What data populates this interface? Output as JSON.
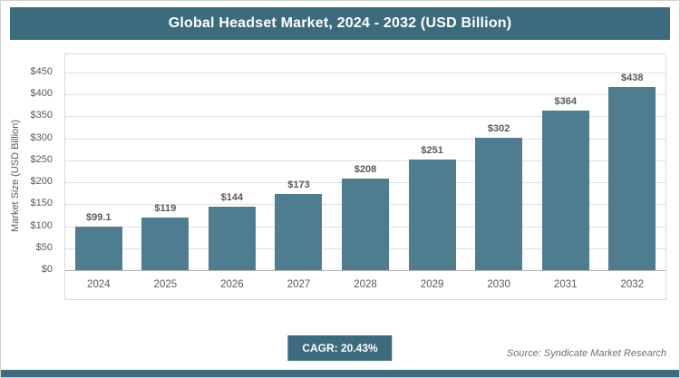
{
  "chart_data": {
    "type": "bar",
    "title": "Global Headset Market, 2024 - 2032 (USD Billion)",
    "categories": [
      "2024",
      "2025",
      "2026",
      "2027",
      "2028",
      "2029",
      "2030",
      "2031",
      "2032"
    ],
    "values": [
      99.1,
      119,
      144,
      173,
      208,
      251,
      302,
      364,
      438
    ],
    "value_labels": [
      "$99.1",
      "$119",
      "$144",
      "$173",
      "$208",
      "$251",
      "$302",
      "$364",
      "$438"
    ],
    "xlabel": "",
    "ylabel": "Market Size (USD Billion)",
    "ylim": [
      0,
      450
    ],
    "ytick_step": 50,
    "ytick_labels": [
      "$0",
      "$50",
      "$100",
      "$150",
      "$200",
      "$250",
      "$300",
      "$350",
      "$400",
      "$450"
    ],
    "grid": true,
    "legend": "none",
    "bar_color": "#4e7d8f",
    "accent_color": "#3d6b7e"
  },
  "footer": {
    "cagr_label": "CAGR: 20.43%",
    "source": "Source: Syndicate Market Research"
  }
}
